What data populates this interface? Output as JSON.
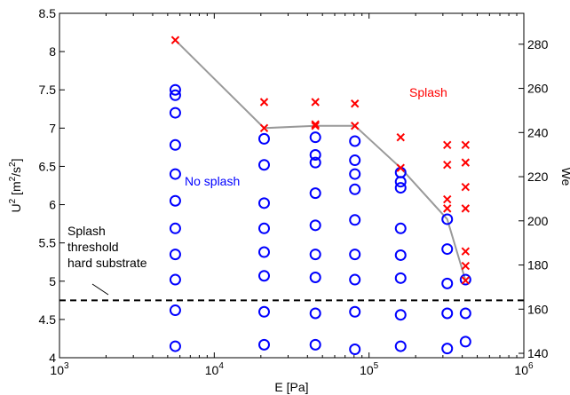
{
  "chart_data": {
    "type": "scatter",
    "x_scale": "log",
    "xlim": [
      1000,
      1000000
    ],
    "ylim": [
      4,
      8.5
    ],
    "y2lim": [
      138,
      294
    ],
    "xlabel": "E [Pa]",
    "ylabel": "U",
    "ylabel_sup": "2",
    "ylabel_unit_open": " [m",
    "ylabel_unit_sup": "2",
    "ylabel_unit_mid": "/s",
    "ylabel_unit_sup2": "2",
    "ylabel_unit_close": "]",
    "y2label": "We",
    "x_ticks": [
      {
        "value": 1000,
        "base": "10",
        "exp": "3"
      },
      {
        "value": 10000,
        "base": "10",
        "exp": "4"
      },
      {
        "value": 100000,
        "base": "10",
        "exp": "5"
      },
      {
        "value": 1000000,
        "base": "10",
        "exp": "6"
      }
    ],
    "y_ticks": [
      "4",
      "4.5",
      "5",
      "5.5",
      "6",
      "6.5",
      "7",
      "7.5",
      "8",
      "8.5"
    ],
    "y2_ticks": [
      "140",
      "160",
      "180",
      "200",
      "220",
      "240",
      "260",
      "280"
    ],
    "grid": false,
    "colors": {
      "no_splash": "#0000ff",
      "splash": "#ff0000",
      "threshold_line": "#999999",
      "hard_threshold": "#000000"
    },
    "series": [
      {
        "name": "No splash",
        "marker": "circle",
        "points": [
          [
            5600,
            4.15
          ],
          [
            5600,
            4.62
          ],
          [
            5600,
            5.02
          ],
          [
            5600,
            5.35
          ],
          [
            5600,
            5.69
          ],
          [
            5600,
            6.05
          ],
          [
            5600,
            6.4
          ],
          [
            5600,
            6.78
          ],
          [
            5600,
            7.2
          ],
          [
            5600,
            7.43
          ],
          [
            5600,
            7.5
          ],
          [
            21000,
            4.17
          ],
          [
            21000,
            4.6
          ],
          [
            21000,
            5.07
          ],
          [
            21000,
            5.38
          ],
          [
            21000,
            5.69
          ],
          [
            21000,
            6.02
          ],
          [
            21000,
            6.52
          ],
          [
            21000,
            6.86
          ],
          [
            45000,
            4.17
          ],
          [
            45000,
            4.58
          ],
          [
            45000,
            5.05
          ],
          [
            45000,
            5.35
          ],
          [
            45000,
            5.73
          ],
          [
            45000,
            6.15
          ],
          [
            45000,
            6.55
          ],
          [
            45000,
            6.65
          ],
          [
            45000,
            6.88
          ],
          [
            81000,
            4.11
          ],
          [
            81000,
            4.6
          ],
          [
            81000,
            5.02
          ],
          [
            81000,
            5.35
          ],
          [
            81000,
            5.8
          ],
          [
            81000,
            6.2
          ],
          [
            81000,
            6.4
          ],
          [
            81000,
            6.58
          ],
          [
            81000,
            6.83
          ],
          [
            160000,
            4.15
          ],
          [
            160000,
            4.56
          ],
          [
            160000,
            5.04
          ],
          [
            160000,
            5.34
          ],
          [
            160000,
            5.69
          ],
          [
            160000,
            6.22
          ],
          [
            160000,
            6.3
          ],
          [
            160000,
            6.42
          ],
          [
            320000,
            4.12
          ],
          [
            320000,
            4.58
          ],
          [
            320000,
            4.97
          ],
          [
            320000,
            5.42
          ],
          [
            320000,
            5.81
          ],
          [
            420000,
            4.21
          ],
          [
            420000,
            4.58
          ],
          [
            420000,
            5.02
          ]
        ]
      },
      {
        "name": "Splash",
        "marker": "x",
        "points": [
          [
            5600,
            8.15
          ],
          [
            21000,
            7.0
          ],
          [
            21000,
            7.34
          ],
          [
            45000,
            7.03
          ],
          [
            45000,
            7.05
          ],
          [
            45000,
            7.34
          ],
          [
            81000,
            7.03
          ],
          [
            81000,
            7.32
          ],
          [
            160000,
            6.48
          ],
          [
            160000,
            6.88
          ],
          [
            320000,
            5.95
          ],
          [
            320000,
            6.07
          ],
          [
            320000,
            6.52
          ],
          [
            320000,
            6.78
          ],
          [
            420000,
            5.01
          ],
          [
            420000,
            5.2
          ],
          [
            420000,
            5.39
          ],
          [
            420000,
            5.95
          ],
          [
            420000,
            6.23
          ],
          [
            420000,
            6.55
          ],
          [
            420000,
            6.78
          ]
        ]
      }
    ],
    "threshold_curve": [
      [
        5600,
        8.15
      ],
      [
        21000,
        7.0
      ],
      [
        45000,
        7.03
      ],
      [
        81000,
        7.03
      ],
      [
        160000,
        6.48
      ],
      [
        320000,
        5.81
      ],
      [
        420000,
        5.01
      ]
    ],
    "hard_threshold_y": 4.75,
    "annotations": {
      "no_splash": "No splash",
      "splash": "Splash",
      "hard_lines": [
        "Splash",
        "threshold",
        "hard substrate"
      ]
    }
  }
}
